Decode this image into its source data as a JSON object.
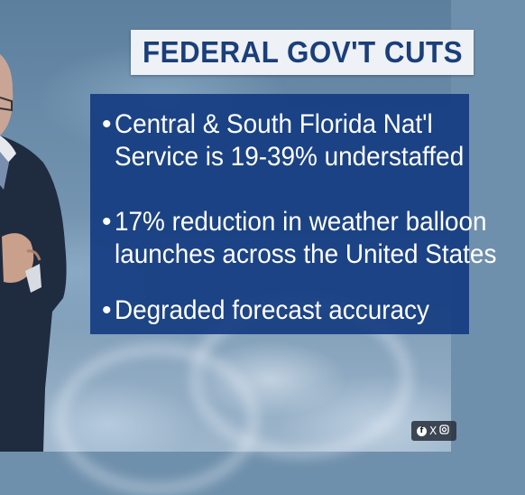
{
  "title": "FEDERAL GOV'T CUTS",
  "bullets": [
    {
      "marker": "•",
      "lines": [
        "Central & South Florida Nat'l",
        "Service is 19-39% understaffed"
      ]
    },
    {
      "marker": "•",
      "lines": [
        "17% reduction in weather balloon",
        "launches across the United States"
      ]
    },
    {
      "marker": "•",
      "lines": [
        "Degraded forecast accuracy"
      ]
    }
  ],
  "social": {
    "icons": [
      "facebook-icon",
      "x-icon",
      "instagram-icon"
    ],
    "x_glyph": "X"
  },
  "colors": {
    "title_bg": "#eef1f6",
    "title_text": "#1a3f7a",
    "panel_bg": "#123a80",
    "bullet_text": "#ffffff"
  }
}
